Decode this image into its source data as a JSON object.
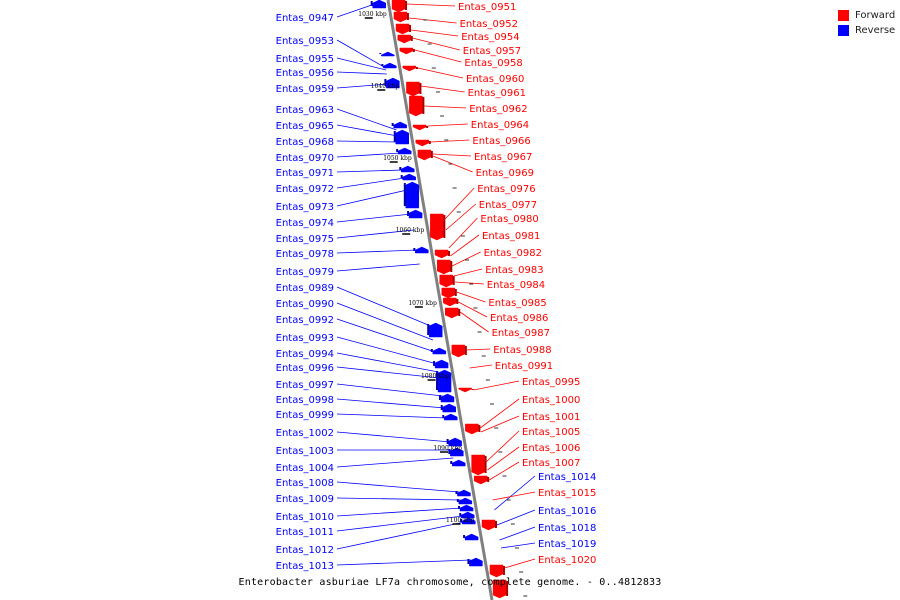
{
  "caption": "Enterobacter asburiae LF7a chromosome, complete genome. - 0..4812833",
  "legend": [
    {
      "label": "Forward",
      "color": "#ff0000"
    },
    {
      "label": "Reverse",
      "color": "#0000ff"
    }
  ],
  "colors": {
    "forward": "#ff0000",
    "reverse": "#0000ff",
    "axis": "#808080"
  },
  "ticks": [
    "1030 kbp",
    "1040 kbp",
    "1050 kbp",
    "1060 kbp",
    "1070 kbp",
    "1080 kbp",
    "1090 kbp",
    "1100 kbp"
  ],
  "left_labels": [
    {
      "text": "Entas_0947",
      "strand": "reverse"
    },
    {
      "text": "Entas_0953",
      "strand": "reverse"
    },
    {
      "text": "Entas_0955",
      "strand": "reverse"
    },
    {
      "text": "Entas_0956",
      "strand": "reverse"
    },
    {
      "text": "Entas_0959",
      "strand": "reverse"
    },
    {
      "text": "Entas_0963",
      "strand": "reverse"
    },
    {
      "text": "Entas_0965",
      "strand": "reverse"
    },
    {
      "text": "Entas_0968",
      "strand": "reverse"
    },
    {
      "text": "Entas_0970",
      "strand": "reverse"
    },
    {
      "text": "Entas_0971",
      "strand": "reverse"
    },
    {
      "text": "Entas_0972",
      "strand": "reverse"
    },
    {
      "text": "Entas_0973",
      "strand": "reverse"
    },
    {
      "text": "Entas_0974",
      "strand": "reverse"
    },
    {
      "text": "Entas_0975",
      "strand": "reverse"
    },
    {
      "text": "Entas_0978",
      "strand": "reverse"
    },
    {
      "text": "Entas_0979",
      "strand": "reverse"
    },
    {
      "text": "Entas_0989",
      "strand": "reverse"
    },
    {
      "text": "Entas_0990",
      "strand": "reverse"
    },
    {
      "text": "Entas_0992",
      "strand": "reverse"
    },
    {
      "text": "Entas_0993",
      "strand": "reverse"
    },
    {
      "text": "Entas_0994",
      "strand": "reverse"
    },
    {
      "text": "Entas_0996",
      "strand": "reverse"
    },
    {
      "text": "Entas_0997",
      "strand": "reverse"
    },
    {
      "text": "Entas_0998",
      "strand": "reverse"
    },
    {
      "text": "Entas_0999",
      "strand": "reverse"
    },
    {
      "text": "Entas_1002",
      "strand": "reverse"
    },
    {
      "text": "Entas_1003",
      "strand": "reverse"
    },
    {
      "text": "Entas_1004",
      "strand": "reverse"
    },
    {
      "text": "Entas_1008",
      "strand": "reverse"
    },
    {
      "text": "Entas_1009",
      "strand": "reverse"
    },
    {
      "text": "Entas_1010",
      "strand": "reverse"
    },
    {
      "text": "Entas_1011",
      "strand": "reverse"
    },
    {
      "text": "Entas_1012",
      "strand": "reverse"
    },
    {
      "text": "Entas_1013",
      "strand": "reverse"
    }
  ],
  "right_labels": [
    {
      "text": "Entas_0951",
      "strand": "forward"
    },
    {
      "text": "Entas_0952",
      "strand": "forward"
    },
    {
      "text": "Entas_0954",
      "strand": "forward"
    },
    {
      "text": "Entas_0957",
      "strand": "forward"
    },
    {
      "text": "Entas_0958",
      "strand": "forward"
    },
    {
      "text": "Entas_0960",
      "strand": "forward"
    },
    {
      "text": "Entas_0961",
      "strand": "forward"
    },
    {
      "text": "Entas_0962",
      "strand": "forward"
    },
    {
      "text": "Entas_0964",
      "strand": "forward"
    },
    {
      "text": "Entas_0966",
      "strand": "forward"
    },
    {
      "text": "Entas_0967",
      "strand": "forward"
    },
    {
      "text": "Entas_0969",
      "strand": "forward"
    },
    {
      "text": "Entas_0976",
      "strand": "forward"
    },
    {
      "text": "Entas_0977",
      "strand": "forward"
    },
    {
      "text": "Entas_0980",
      "strand": "forward"
    },
    {
      "text": "Entas_0981",
      "strand": "forward"
    },
    {
      "text": "Entas_0982",
      "strand": "forward"
    },
    {
      "text": "Entas_0983",
      "strand": "forward"
    },
    {
      "text": "Entas_0984",
      "strand": "forward"
    },
    {
      "text": "Entas_0985",
      "strand": "forward"
    },
    {
      "text": "Entas_0986",
      "strand": "forward"
    },
    {
      "text": "Entas_0987",
      "strand": "forward"
    },
    {
      "text": "Entas_0988",
      "strand": "forward"
    },
    {
      "text": "Entas_0991",
      "strand": "forward"
    },
    {
      "text": "Entas_0995",
      "strand": "forward"
    },
    {
      "text": "Entas_1000",
      "strand": "forward"
    },
    {
      "text": "Entas_1001",
      "strand": "forward"
    },
    {
      "text": "Entas_1005",
      "strand": "forward"
    },
    {
      "text": "Entas_1006",
      "strand": "forward"
    },
    {
      "text": "Entas_1007",
      "strand": "forward"
    },
    {
      "text": "Entas_1014",
      "strand": "reverse"
    },
    {
      "text": "Entas_1015",
      "strand": "forward"
    },
    {
      "text": "Entas_1016",
      "strand": "reverse"
    },
    {
      "text": "Entas_1018",
      "strand": "reverse"
    },
    {
      "text": "Entas_1019",
      "strand": "reverse"
    },
    {
      "text": "Entas_1020",
      "strand": "forward"
    }
  ]
}
